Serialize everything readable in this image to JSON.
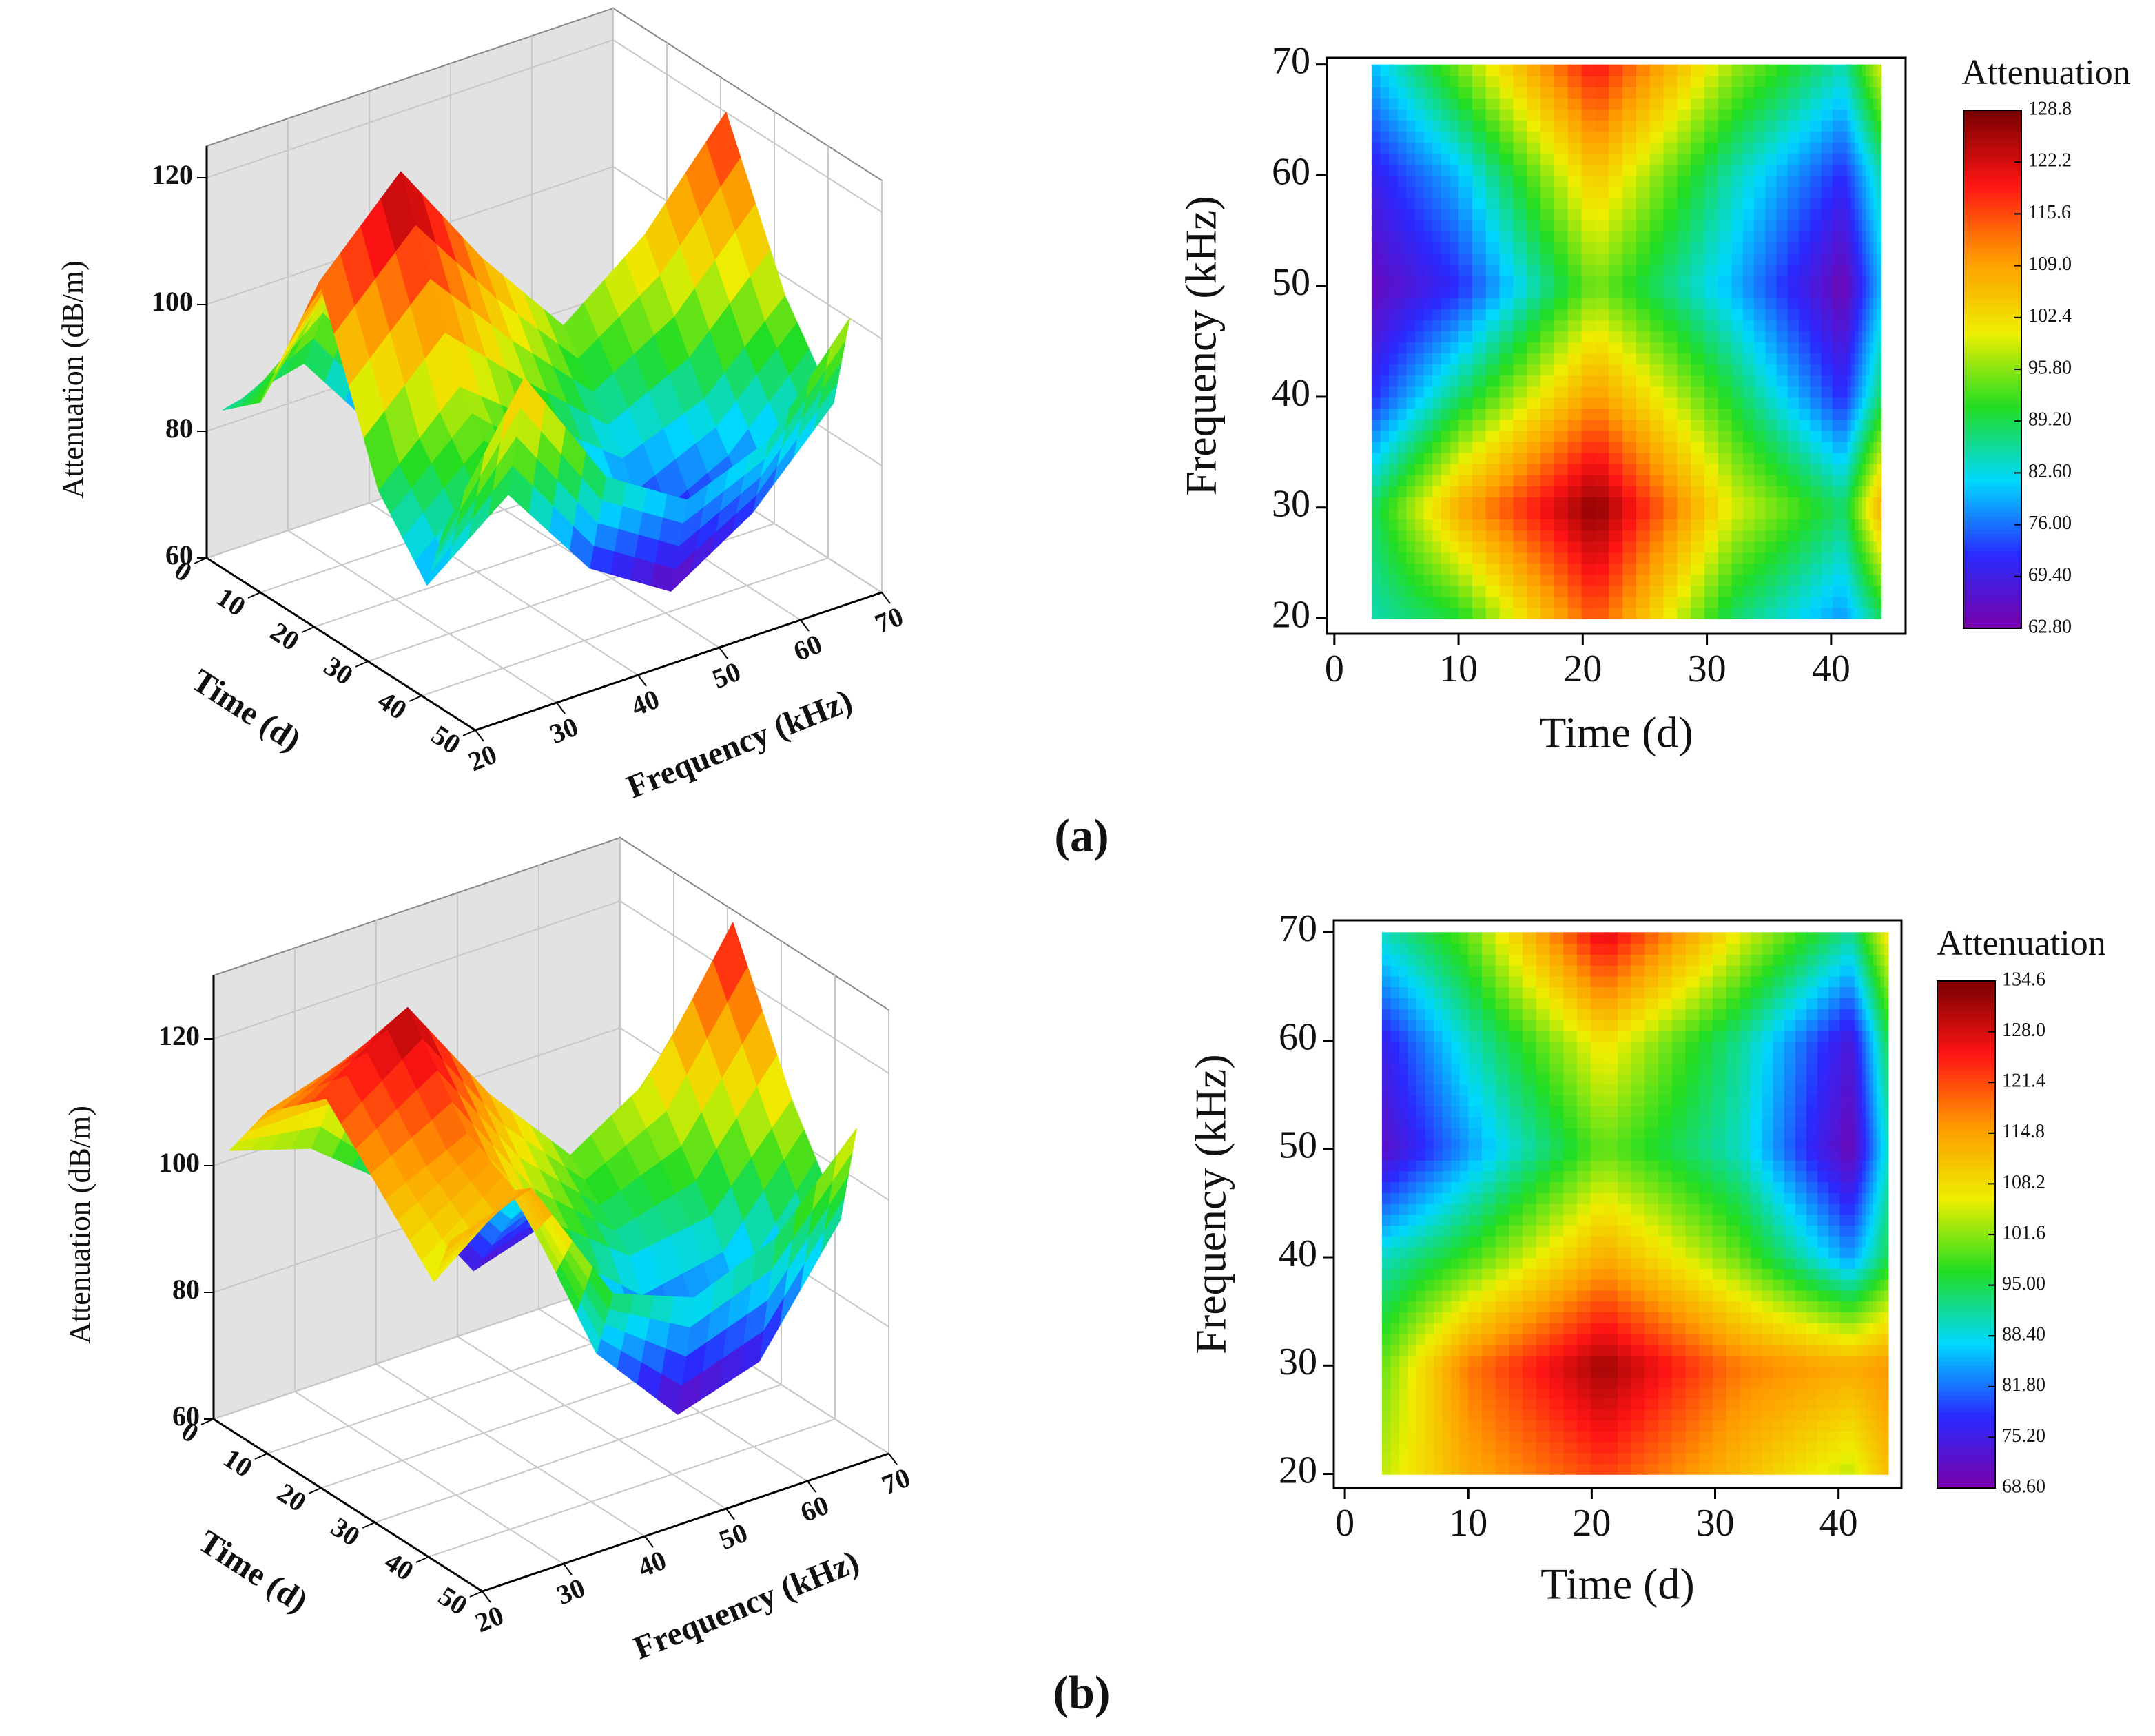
{
  "chart_data": [
    {
      "type": "contour",
      "label": "(a)",
      "x_label": "Time (d)",
      "y_label": "Frequency (kHz)",
      "z_label": "Attenuation (dB/m)",
      "colorbar_title": "Attenuation",
      "x": [
        3,
        10,
        21,
        32,
        41,
        44
      ],
      "y": [
        20,
        30,
        40,
        50,
        60,
        70
      ],
      "z": [
        [
          85,
          90,
          115,
          88,
          78,
          88
        ],
        [
          88,
          108,
          128,
          100,
          88,
          108
        ],
        [
          72,
          88,
          110,
          90,
          72,
          88
        ],
        [
          65,
          72,
          95,
          80,
          64,
          80
        ],
        [
          70,
          80,
          105,
          85,
          72,
          85
        ],
        [
          80,
          95,
          120,
          97,
          85,
          100
        ]
      ],
      "xlim": [
        -0.6,
        46.0
      ],
      "xticks": [
        0,
        10,
        20,
        30,
        40
      ],
      "ylim": [
        18.6,
        70.6
      ],
      "yticks": [
        20,
        30,
        40,
        50,
        60,
        70
      ],
      "clim": [
        62.8,
        128.8
      ],
      "cticks": [
        128.8,
        122.2,
        115.6,
        {
          "value": 109.0,
          "label": "109.0"
        },
        102.4,
        {
          "value": 95.8,
          "label": "95.80"
        },
        {
          "value": 89.2,
          "label": "89.20"
        },
        {
          "value": 82.6,
          "label": "82.60"
        },
        {
          "value": 76.0,
          "label": "76.00"
        },
        {
          "value": 69.4,
          "label": "69.40"
        },
        {
          "value": 62.8,
          "label": "62.80"
        }
      ],
      "colormap": [
        "#7a00a8",
        "#2a2aff",
        "#00d8ff",
        "#22dd22",
        "#eeee00",
        "#ff9a00",
        "#ff1414",
        "#7a0000"
      ],
      "surface_xlim": [
        0,
        50
      ],
      "surface_xticks": [
        0,
        10,
        20,
        30,
        40,
        50
      ],
      "surface_ylim": [
        20,
        70
      ],
      "surface_yticks": [
        20,
        30,
        40,
        50,
        60,
        70
      ],
      "zlim": [
        60,
        125
      ],
      "zticks": [
        60,
        80,
        100,
        120
      ]
    },
    {
      "type": "contour",
      "label": "(b)",
      "x_label": "Time (d)",
      "y_label": "Frequency (kHz)",
      "z_label": "Attenuation (dB/m)",
      "colorbar_title": "Attenuation",
      "x": [
        3,
        10,
        21,
        32,
        41,
        44
      ],
      "y": [
        20,
        30,
        40,
        50,
        60,
        70
      ],
      "z": [
        [
          104,
          114,
          122,
          112,
          104,
          112
        ],
        [
          100,
          118,
          132,
          118,
          114,
          116
        ],
        [
          90,
          98,
          114,
          100,
          84,
          95
        ],
        [
          72,
          84,
          100,
          90,
          70,
          90
        ],
        [
          76,
          90,
          108,
          92,
          74,
          95
        ],
        [
          90,
          100,
          128,
          106,
          92,
          108
        ]
      ],
      "xlim": [
        -0.9,
        45.1
      ],
      "xticks": [
        0,
        10,
        20,
        30,
        40
      ],
      "ylim": [
        18.7,
        71.1
      ],
      "yticks": [
        20,
        30,
        40,
        50,
        60,
        70
      ],
      "clim": [
        68.6,
        134.6
      ],
      "cticks": [
        134.6,
        {
          "value": 128.0,
          "label": "128.0"
        },
        121.4,
        114.8,
        108.2,
        101.6,
        {
          "value": 95.0,
          "label": "95.00"
        },
        {
          "value": 88.4,
          "label": "88.40"
        },
        {
          "value": 81.8,
          "label": "81.80"
        },
        {
          "value": 75.2,
          "label": "75.20"
        },
        {
          "value": 68.6,
          "label": "68.60"
        }
      ],
      "colormap": [
        "#7a00a8",
        "#2a2aff",
        "#00d8ff",
        "#22dd22",
        "#eeee00",
        "#ff9a00",
        "#ff1414",
        "#7a0000"
      ],
      "surface_xlim": [
        0,
        50
      ],
      "surface_xticks": [
        0,
        10,
        20,
        30,
        40,
        50
      ],
      "surface_ylim": [
        20,
        70
      ],
      "surface_yticks": [
        20,
        30,
        40,
        50,
        60,
        70
      ],
      "zlim": [
        60,
        130
      ],
      "zticks": [
        60,
        80,
        100,
        120
      ]
    }
  ]
}
